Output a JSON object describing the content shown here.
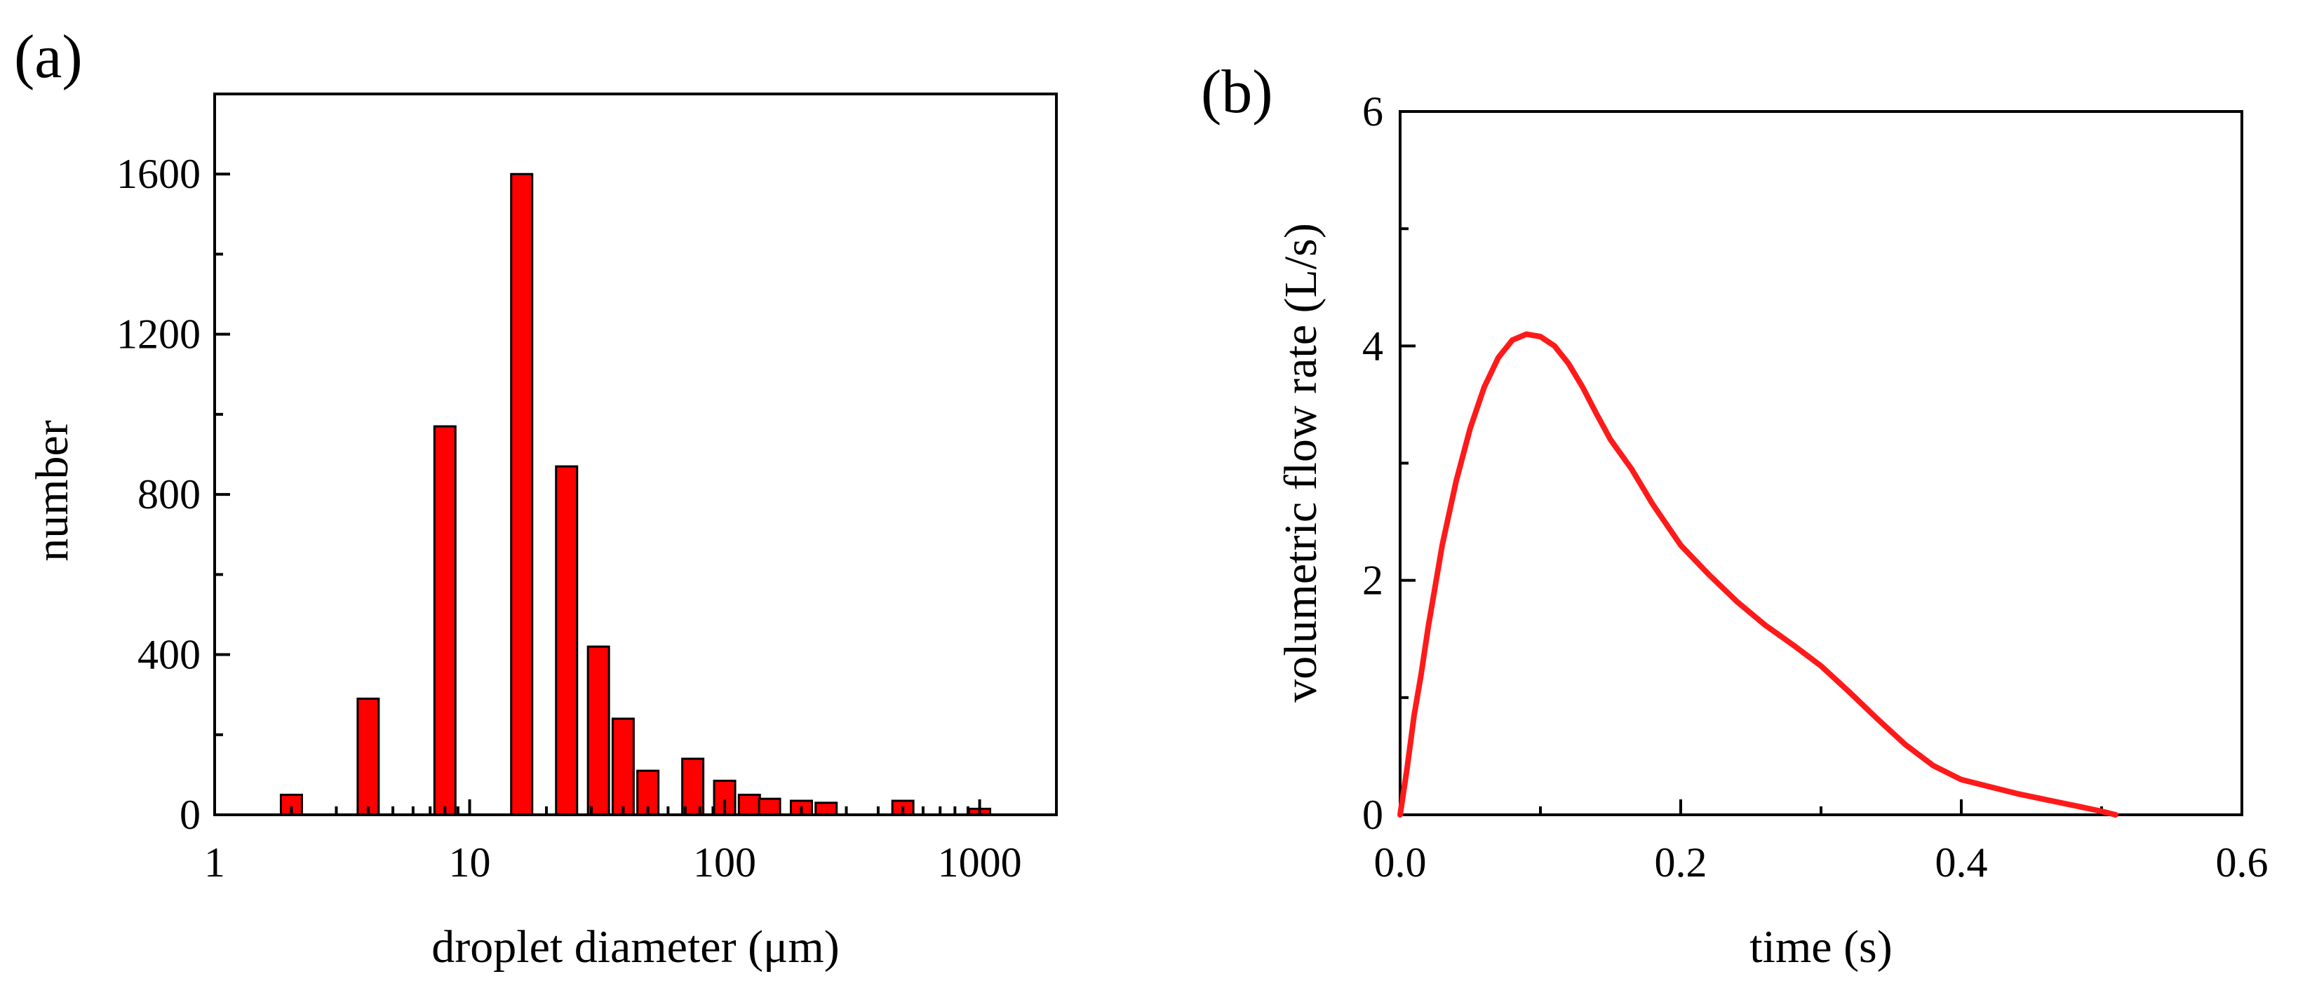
{
  "colors": {
    "bar_fill": "#ff0000",
    "curve": "#ff1a1a",
    "axis": "#000000"
  },
  "chart_data": [
    {
      "panel_label": "(a)",
      "type": "bar",
      "xscale": "log",
      "xlabel": "droplet diameter (μm)",
      "ylabel": "number",
      "xlim": [
        1,
        2000
      ],
      "ylim": [
        0,
        1800
      ],
      "xticks": [
        1,
        10,
        100,
        1000
      ],
      "xtick_labels": [
        "1",
        "10",
        "100",
        "1000"
      ],
      "yticks": [
        0,
        400,
        800,
        1200,
        1600
      ],
      "ytick_labels": [
        "0",
        "400",
        "800",
        "1200",
        "1600"
      ],
      "x": [
        2,
        4,
        8,
        16,
        24,
        32,
        40,
        50,
        75,
        100,
        125,
        150,
        200,
        250,
        500,
        1000
      ],
      "values": [
        50,
        290,
        970,
        1600,
        870,
        420,
        240,
        110,
        140,
        85,
        50,
        40,
        35,
        30,
        35,
        15
      ],
      "grid": false
    },
    {
      "panel_label": "(b)",
      "type": "line",
      "xlabel": "time (s)",
      "ylabel": "volumetric flow rate (L/s)",
      "xlim": [
        0,
        0.6
      ],
      "ylim": [
        0,
        6
      ],
      "xticks": [
        0,
        0.2,
        0.4,
        0.6
      ],
      "xtick_labels": [
        "0.0",
        "0.2",
        "0.4",
        "0.6"
      ],
      "yticks": [
        0,
        2,
        4,
        6
      ],
      "ytick_labels": [
        "0",
        "2",
        "4",
        "6"
      ],
      "grid": false,
      "series": [
        {
          "x": [
            0,
            0.005,
            0.01,
            0.015,
            0.02,
            0.025,
            0.03,
            0.04,
            0.05,
            0.06,
            0.07,
            0.08,
            0.09,
            0.1,
            0.11,
            0.12,
            0.13,
            0.14,
            0.15,
            0.165,
            0.18,
            0.2,
            0.22,
            0.24,
            0.26,
            0.28,
            0.3,
            0.32,
            0.34,
            0.36,
            0.38,
            0.4,
            0.42,
            0.44,
            0.46,
            0.48,
            0.5,
            0.51
          ],
          "y": [
            0,
            0.4,
            0.85,
            1.2,
            1.6,
            1.95,
            2.3,
            2.85,
            3.3,
            3.65,
            3.9,
            4.05,
            4.1,
            4.08,
            4.0,
            3.85,
            3.65,
            3.42,
            3.2,
            2.95,
            2.65,
            2.3,
            2.05,
            1.82,
            1.62,
            1.45,
            1.27,
            1.05,
            0.82,
            0.6,
            0.42,
            0.3,
            0.24,
            0.18,
            0.13,
            0.08,
            0.03,
            0
          ]
        }
      ]
    }
  ]
}
